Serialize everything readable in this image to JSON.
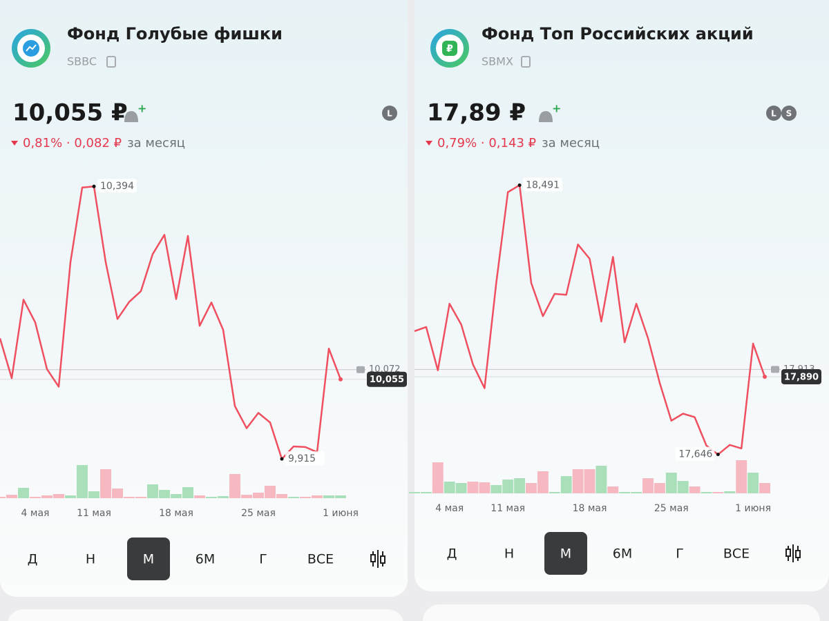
{
  "panels": [
    {
      "title": "Фонд Голубые фишки",
      "ticker": "SBBC",
      "price": "10,055 ₽",
      "change_pct": "0,81%",
      "change_abs": "0,082 ₽",
      "period": "за месяц",
      "badges": [
        "L"
      ],
      "tabs": [
        "Д",
        "Н",
        "М",
        "6М",
        "Г",
        "ВСЕ"
      ],
      "active_tab": "М"
    },
    {
      "title": "Фонд Топ Российских акций",
      "ticker": "SBMX",
      "price": "17,89 ₽",
      "change_pct": "0,79%",
      "change_abs": "0,143 ₽",
      "period": "за месяц",
      "badges": [
        "L",
        "S"
      ],
      "tabs": [
        "Д",
        "Н",
        "М",
        "6М",
        "Г",
        "ВСЕ"
      ],
      "active_tab": "М"
    }
  ],
  "chart_data": [
    {
      "type": "line",
      "color": "#ef4f5f",
      "categories": [
        null,
        null,
        null,
        "4 мая",
        null,
        null,
        null,
        null,
        "11 мая",
        null,
        null,
        null,
        null,
        null,
        null,
        "18 мая",
        null,
        null,
        null,
        null,
        null,
        null,
        "25 мая",
        null,
        null,
        null,
        null,
        null,
        null,
        "1 июня"
      ],
      "values": [
        10.127,
        10.057,
        10.195,
        10.155,
        10.073,
        10.042,
        10.261,
        10.392,
        10.394,
        10.261,
        10.161,
        10.191,
        10.21,
        10.275,
        10.309,
        10.196,
        10.307,
        10.149,
        10.19,
        10.142,
        10.008,
        9.969,
        9.996,
        9.979,
        9.915,
        9.937,
        9.936,
        9.927,
        10.109,
        10.055
      ],
      "ylim": [
        9.8,
        10.45
      ],
      "high_label": "10,394",
      "low_label": "9,915",
      "last_label": "10,055",
      "reference": {
        "value": 10.072,
        "label": "10,072"
      },
      "volume": {
        "values": [
          2,
          5,
          15,
          2,
          4,
          6,
          4,
          48,
          10,
          42,
          14,
          2,
          2,
          20,
          12,
          6,
          16,
          4,
          2,
          3,
          35,
          5,
          8,
          18,
          6,
          2,
          2,
          4,
          4,
          4
        ],
        "colors": [
          "#f6b9c2",
          "#f6b9c2",
          "#a9e0b9",
          "#f6b9c2",
          "#f6b9c2",
          "#f6b9c2",
          "#a9e0b9",
          "#a9e0b9",
          "#a9e0b9",
          "#f6b9c2",
          "#f6b9c2",
          "#f6b9c2",
          "#f6b9c2",
          "#a9e0b9",
          "#a9e0b9",
          "#a9e0b9",
          "#a9e0b9",
          "#f6b9c2",
          "#a9e0b9",
          "#a9e0b9",
          "#f6b9c2",
          "#f6b9c2",
          "#f6b9c2",
          "#f6b9c2",
          "#f6b9c2",
          "#a9e0b9",
          "#f6b9c2",
          "#f6b9c2",
          "#a9e0b9",
          "#a9e0b9"
        ]
      }
    },
    {
      "type": "line",
      "color": "#ef4f5f",
      "categories": [
        null,
        null,
        null,
        "4 мая",
        null,
        null,
        null,
        null,
        "11 мая",
        null,
        null,
        null,
        null,
        null,
        null,
        "18 мая",
        null,
        null,
        null,
        null,
        null,
        null,
        "25 мая",
        null,
        null,
        null,
        null,
        null,
        null,
        "1 июня",
        null
      ],
      "values": [
        18.033,
        18.046,
        17.91,
        18.119,
        18.054,
        17.929,
        17.854,
        18.184,
        18.469,
        18.491,
        18.184,
        18.08,
        18.15,
        18.147,
        18.305,
        18.26,
        18.063,
        18.266,
        17.998,
        18.119,
        18.011,
        17.871,
        17.752,
        17.774,
        17.763,
        17.674,
        17.646,
        17.676,
        17.665,
        17.994,
        17.89
      ],
      "ylim": [
        17.55,
        18.6
      ],
      "high_label": "18,491",
      "low_label": "17,646",
      "last_label": "17,890",
      "reference": {
        "value": 17.913,
        "label": "17,913"
      },
      "volume": {
        "values": [
          2,
          2,
          45,
          17,
          15,
          17,
          16,
          12,
          20,
          22,
          15,
          32,
          2,
          25,
          35,
          35,
          40,
          10,
          2,
          2,
          22,
          15,
          30,
          18,
          10,
          2,
          2,
          3,
          48,
          30,
          15
        ],
        "colors": [
          "#a9e0b9",
          "#a9e0b9",
          "#f6b9c2",
          "#a9e0b9",
          "#a9e0b9",
          "#f6b9c2",
          "#f6b9c2",
          "#a9e0b9",
          "#a9e0b9",
          "#a9e0b9",
          "#f6b9c2",
          "#f6b9c2",
          "#a9e0b9",
          "#a9e0b9",
          "#f6b9c2",
          "#f6b9c2",
          "#a9e0b9",
          "#f6b9c2",
          "#a9e0b9",
          "#a9e0b9",
          "#f6b9c2",
          "#f6b9c2",
          "#a9e0b9",
          "#a9e0b9",
          "#f6b9c2",
          "#a9e0b9",
          "#f6b9c2",
          "#a9e0b9",
          "#f6b9c2",
          "#a9e0b9",
          "#f6b9c2"
        ]
      }
    }
  ]
}
